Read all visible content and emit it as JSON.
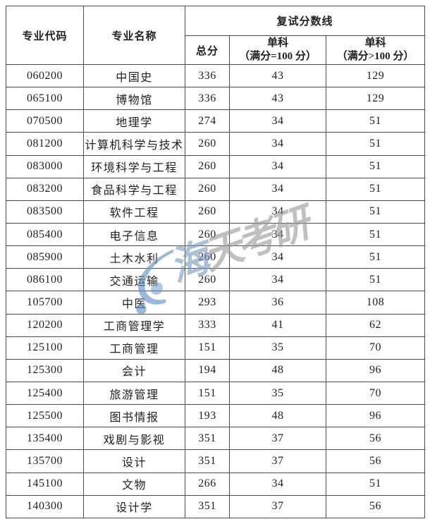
{
  "table": {
    "header": {
      "code": "专业代码",
      "name": "专业名称",
      "retest_group": "复试分数线",
      "total": "总分",
      "single_eq_line1": "单科",
      "single_eq_line2": "（满分=100 分）",
      "single_gt_line1": "单科",
      "single_gt_line2": "（满分>100 分）"
    },
    "rows": [
      {
        "code": "060200",
        "name": "中国史",
        "total": "336",
        "single_eq": "43",
        "single_gt": "129"
      },
      {
        "code": "065100",
        "name": "博物馆",
        "total": "336",
        "single_eq": "43",
        "single_gt": "129"
      },
      {
        "code": "070500",
        "name": "地理学",
        "total": "274",
        "single_eq": "34",
        "single_gt": "51"
      },
      {
        "code": "081200",
        "name": "计算机科学与技术",
        "total": "260",
        "single_eq": "34",
        "single_gt": "51"
      },
      {
        "code": "083000",
        "name": "环境科学与工程",
        "total": "260",
        "single_eq": "34",
        "single_gt": "51"
      },
      {
        "code": "083200",
        "name": "食品科学与工程",
        "total": "260",
        "single_eq": "34",
        "single_gt": "51"
      },
      {
        "code": "083500",
        "name": "软件工程",
        "total": "260",
        "single_eq": "34",
        "single_gt": "51"
      },
      {
        "code": "085400",
        "name": "电子信息",
        "total": "260",
        "single_eq": "34",
        "single_gt": "51"
      },
      {
        "code": "085900",
        "name": "土木水利",
        "total": "260",
        "single_eq": "34",
        "single_gt": "51"
      },
      {
        "code": "086100",
        "name": "交通运输",
        "total": "260",
        "single_eq": "34",
        "single_gt": "51"
      },
      {
        "code": "105700",
        "name": "中医",
        "total": "293",
        "single_eq": "36",
        "single_gt": "108"
      },
      {
        "code": "120200",
        "name": "工商管理学",
        "total": "333",
        "single_eq": "41",
        "single_gt": "62"
      },
      {
        "code": "125100",
        "name": "工商管理",
        "total": "151",
        "single_eq": "35",
        "single_gt": "70"
      },
      {
        "code": "125300",
        "name": "会计",
        "total": "194",
        "single_eq": "48",
        "single_gt": "96"
      },
      {
        "code": "125400",
        "name": "旅游管理",
        "total": "151",
        "single_eq": "35",
        "single_gt": "70"
      },
      {
        "code": "125500",
        "name": "图书情报",
        "total": "193",
        "single_eq": "48",
        "single_gt": "96"
      },
      {
        "code": "135400",
        "name": "戏剧与影视",
        "total": "351",
        "single_eq": "37",
        "single_gt": "56"
      },
      {
        "code": "135700",
        "name": "设计",
        "total": "351",
        "single_eq": "37",
        "single_gt": "56"
      },
      {
        "code": "145100",
        "name": "文物",
        "total": "266",
        "single_eq": "34",
        "single_gt": "51"
      },
      {
        "code": "140300",
        "name": "设计学",
        "total": "351",
        "single_eq": "37",
        "single_gt": "56"
      }
    ]
  },
  "watermark": {
    "text_first": "海",
    "text_rest": "天考研",
    "logo_color": "#5d8fc5",
    "text_color": "#9b9b9b",
    "first_char_color": "#7d9abd"
  },
  "colors": {
    "border": "#4a4a4a",
    "text": "#1f1f1f",
    "background": "#ffffff"
  }
}
